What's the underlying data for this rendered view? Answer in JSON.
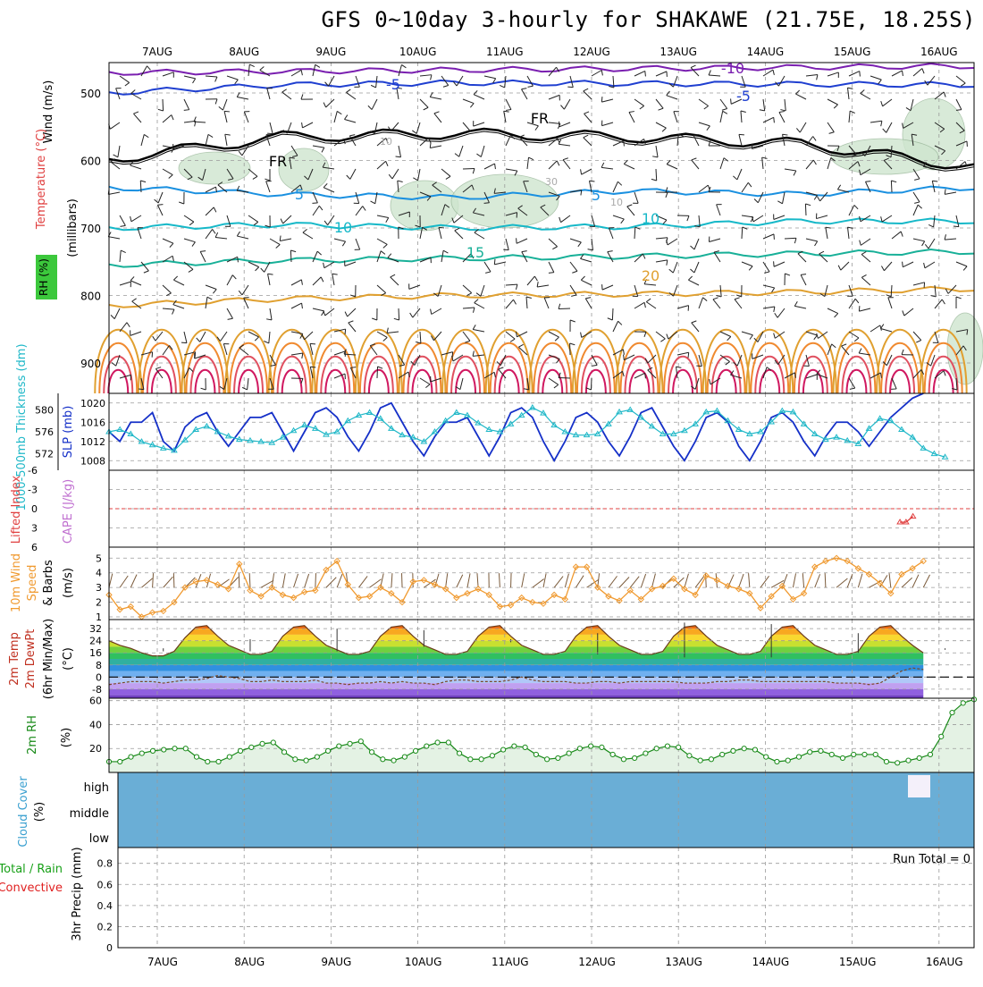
{
  "title": "GFS 0~10day 3-hourly for SHAKAWE (21.75E, 18.25S)",
  "colors": {
    "frame": "#000000",
    "grid": "#9a9a9a",
    "temp_contours": [
      "#7a1fb0",
      "#1f3fd0",
      "#1a90e0",
      "#16b8c8",
      "#18b098",
      "#e0a030",
      "#f08a30",
      "#e05060",
      "#d01860"
    ],
    "rh_shade": "#cfe6cf",
    "slp": "#1530c8",
    "thickness": "#20b8c8",
    "lifted_index": "#e04040",
    "wind10": "#f09a30",
    "temp_bands": [
      "#e83010",
      "#f06a10",
      "#f8a820",
      "#f8d830",
      "#c8e030",
      "#70d040",
      "#30c060",
      "#30b0a0",
      "#3090e0",
      "#70b0f0",
      "#b0c8f8",
      "#c0a0f0",
      "#9060e0",
      "#7040c0"
    ],
    "rh2m": "#188a18",
    "cloud": "#6aaed6",
    "precip_total": "#18a018",
    "precip_conv": "#e02020"
  },
  "chart_data": [
    {
      "type": "contour",
      "panel": "upper-air",
      "x_ticks": [
        "7AUG",
        "8AUG",
        "9AUG",
        "10AUG",
        "11AUG",
        "12AUG",
        "13AUG",
        "14AUG",
        "15AUG",
        "16AUG"
      ],
      "ylabel": "(millibars)",
      "ylabel_left": "Wind (m/s)",
      "ylabel_temp": "Temperature (°C)",
      "ylabel_rh": "RH (%)",
      "y_ticks": [
        500,
        600,
        700,
        800,
        900
      ],
      "ylim": [
        455,
        945
      ],
      "y_scale": "linear",
      "contour_labels": [
        "-10",
        "-5",
        "-5",
        "FR",
        "FR",
        "5",
        "5",
        "10",
        "10",
        "15",
        "20",
        "10",
        "10",
        "30"
      ],
      "isotherms": [
        {
          "label": "-10",
          "pressure": [
            470,
            468,
            466,
            464,
            462,
            460
          ]
        },
        {
          "label": "-5",
          "pressure": [
            500,
            488,
            485,
            486,
            487,
            488
          ]
        },
        {
          "label": "0",
          "pressure": [
            598,
            565,
            560,
            565,
            575,
            610
          ]
        },
        {
          "label": "5",
          "pressure": [
            640,
            650,
            655,
            645,
            650,
            640
          ]
        },
        {
          "label": "10",
          "pressure": [
            700,
            695,
            700,
            698,
            690,
            690
          ]
        },
        {
          "label": "15",
          "pressure": [
            755,
            748,
            745,
            742,
            738,
            735
          ]
        },
        {
          "label": "20",
          "pressure": [
            815,
            805,
            800,
            798,
            795,
            790
          ]
        }
      ]
    },
    {
      "type": "line",
      "panel": "slp-thickness",
      "ylabel_left": "1000-500mb Thickness (dm)",
      "ylabel_right": "SLP (mb)",
      "y_ticks_left": [
        572,
        576,
        580
      ],
      "y_ticks_right": [
        1008,
        1012,
        1016,
        1020
      ],
      "ylim_right": [
        1006,
        1022
      ],
      "series": [
        {
          "name": "SLP (mb)",
          "values": [
            1014,
            1012,
            1016,
            1016,
            1018,
            1012,
            1010,
            1015,
            1017,
            1018,
            1014,
            1011,
            1014,
            1017,
            1017,
            1018,
            1014,
            1010,
            1014,
            1018,
            1019,
            1017,
            1013,
            1010,
            1014,
            1019,
            1020,
            1016,
            1012,
            1009,
            1013,
            1016,
            1016,
            1017,
            1013,
            1009,
            1013,
            1018,
            1019,
            1017,
            1012,
            1008,
            1012,
            1017,
            1018,
            1016,
            1012,
            1009,
            1013,
            1018,
            1019,
            1015,
            1011,
            1008,
            1012,
            1017,
            1018,
            1016,
            1011,
            1008,
            1012,
            1017,
            1018,
            1016,
            1012,
            1009,
            1013,
            1016,
            1016,
            1014,
            1011,
            1014,
            1017,
            1019,
            1021,
            1022
          ]
        },
        {
          "name": "1000-500mb Thickness (dm)",
          "values": [
            576,
            576.4,
            575.6,
            574.2,
            573.6,
            573,
            572.6,
            574.5,
            576.4,
            577,
            576,
            575.2,
            574.6,
            574.4,
            574.2,
            574,
            575,
            576.2,
            577.2,
            576.6,
            575.5,
            576,
            578,
            579,
            579.5,
            578.4,
            576.6,
            575.4,
            575,
            574.2,
            576,
            578,
            579.5,
            579,
            577.6,
            576.4,
            576,
            577.4,
            579,
            580.4,
            579.4,
            577.2,
            576,
            575.4,
            575.4,
            575.6,
            577.4,
            579.6,
            580,
            578.6,
            577,
            575.6,
            575.6,
            576.2,
            577.4,
            579.6,
            579.8,
            578,
            576.4,
            575.6,
            576,
            577.8,
            579.8,
            579.6,
            577.4,
            575.6,
            574.6,
            575,
            574.4,
            573.8,
            576.6,
            578.4,
            578,
            576.4,
            575,
            573,
            572,
            571.4
          ]
        }
      ]
    },
    {
      "type": "line",
      "panel": "cape-li",
      "ylabel_left": "Lifted Index",
      "ylabel_right": "CAPE (J/kg)",
      "y_ticks": [
        -6,
        -3,
        0,
        3,
        6
      ],
      "ylim": [
        -6,
        6
      ],
      "series": [
        {
          "name": "Lifted Index",
          "x_day": [
            15.55,
            15.62,
            15.7
          ],
          "values": [
            2.1,
            2.1,
            1.2
          ]
        }
      ]
    },
    {
      "type": "line",
      "panel": "wind10m",
      "ylabel": "10m Wind Speed & Barbs (m/s)",
      "y_ticks": [
        1,
        2,
        3,
        4,
        5
      ],
      "ylim": [
        1,
        5.2
      ],
      "series": [
        {
          "name": "10m Wind Speed",
          "values": [
            2.5,
            1.5,
            1.7,
            1.0,
            1.3,
            1.4,
            2.0,
            3.0,
            3.4,
            3.5,
            3.2,
            2.9,
            4.6,
            2.8,
            2.4,
            3.0,
            2.5,
            2.3,
            2.7,
            2.8,
            4.2,
            4.8,
            3.2,
            2.3,
            2.4,
            3.0,
            2.6,
            2.0,
            3.4,
            3.5,
            3.2,
            2.9,
            2.3,
            2.6,
            2.9,
            2.5,
            1.7,
            1.8,
            2.3,
            2.0,
            1.9,
            2.5,
            2.2,
            4.4,
            4.4,
            3.0,
            2.4,
            2.1,
            2.8,
            2.2,
            2.9,
            3.1,
            3.6,
            2.9,
            2.5,
            3.8,
            3.5,
            3.1,
            2.9,
            2.6,
            1.6,
            2.4,
            3.1,
            2.2,
            2.6,
            4.4,
            4.8,
            5.0,
            4.8,
            4.3,
            3.9,
            3.3,
            2.6,
            3.9,
            4.3,
            4.8
          ]
        }
      ]
    },
    {
      "type": "area",
      "panel": "temp2m",
      "ylabel": "2m Temp 2m DewPt (6hr Min/Max) (°C)",
      "y_ticks": [
        -8,
        0,
        8,
        16,
        24,
        32
      ],
      "ylim": [
        -14,
        38
      ],
      "series": [
        {
          "name": "2m Temp",
          "values": [
            24,
            21,
            19,
            16,
            14,
            14,
            17,
            26,
            33,
            34,
            27,
            21,
            18,
            15,
            15,
            17,
            27,
            33,
            34,
            27,
            21,
            18,
            15,
            15,
            17,
            27,
            33,
            34,
            27,
            21,
            18,
            15,
            15,
            17,
            27,
            33,
            34,
            27,
            21,
            18,
            15,
            15,
            17,
            27,
            33,
            34,
            27,
            21,
            18,
            15,
            15,
            17,
            27,
            33,
            34,
            27,
            21,
            18,
            15,
            15,
            17,
            27,
            33,
            34,
            27,
            21,
            18,
            15,
            15,
            17,
            27,
            33,
            34,
            27,
            21,
            16
          ]
        },
        {
          "name": "2m DewPt",
          "values": [
            -5,
            -4,
            -3,
            -3,
            -3,
            -4,
            -3,
            -2,
            -2,
            -1,
            1,
            0,
            -1,
            -3,
            -3,
            -2,
            -3,
            -3,
            -3,
            -2,
            -4,
            -4,
            -5,
            -4,
            -4,
            -3,
            -4,
            -3,
            -4,
            -4,
            -5,
            -3,
            -2,
            -2,
            -3,
            -3,
            -3,
            -2,
            0,
            -2,
            -3,
            -3,
            -3,
            -4,
            -4,
            -3,
            -3,
            -4,
            -3,
            -3,
            -3,
            -3,
            -3,
            -4,
            -4,
            -4,
            -3,
            -3,
            -2,
            -2,
            -3,
            -3,
            -3,
            -3,
            -3,
            -3,
            -3,
            -4,
            -4,
            -4,
            -5,
            -4,
            0,
            4,
            6,
            5
          ]
        }
      ]
    },
    {
      "type": "area",
      "panel": "rh2m",
      "ylabel": "2m RH (%)",
      "y_ticks": [
        20,
        40,
        60
      ],
      "ylim": [
        0,
        62
      ],
      "series": [
        {
          "name": "2m RH",
          "values": [
            9,
            9,
            13,
            16,
            18,
            19,
            20,
            20,
            13,
            9,
            9,
            13,
            18,
            21,
            24,
            25,
            17,
            11,
            10,
            13,
            18,
            22,
            24,
            26,
            17,
            11,
            10,
            13,
            18,
            22,
            25,
            25,
            16,
            11,
            11,
            14,
            19,
            22,
            21,
            15,
            11,
            12,
            16,
            20,
            22,
            21,
            15,
            11,
            12,
            16,
            20,
            22,
            21,
            14,
            10,
            11,
            15,
            18,
            20,
            19,
            13,
            9,
            10,
            13,
            17,
            18,
            15,
            12,
            15,
            15,
            15,
            9,
            8,
            10,
            12,
            15,
            30,
            50,
            58,
            61
          ]
        }
      ]
    },
    {
      "type": "heatmap",
      "panel": "cloud",
      "ylabel": "Cloud Cover (%)",
      "y_ticks": [
        "high",
        "middle",
        "low"
      ],
      "note": "clear sky (blue) across the whole period with one high-cloud block on 15AUG evening"
    },
    {
      "type": "bar",
      "panel": "precip",
      "ylabel": "3hr Precip (mm)",
      "ylabel_left": "Total / Rain",
      "ylabel_left2": "Convective",
      "annotation": "Run Total = 0",
      "y_ticks": [
        0,
        0.2,
        0.4,
        0.6,
        0.8
      ],
      "ylim": [
        0,
        0.95
      ],
      "series": [
        {
          "name": "Total / Rain",
          "values": []
        },
        {
          "name": "Convective",
          "values": []
        }
      ]
    }
  ]
}
